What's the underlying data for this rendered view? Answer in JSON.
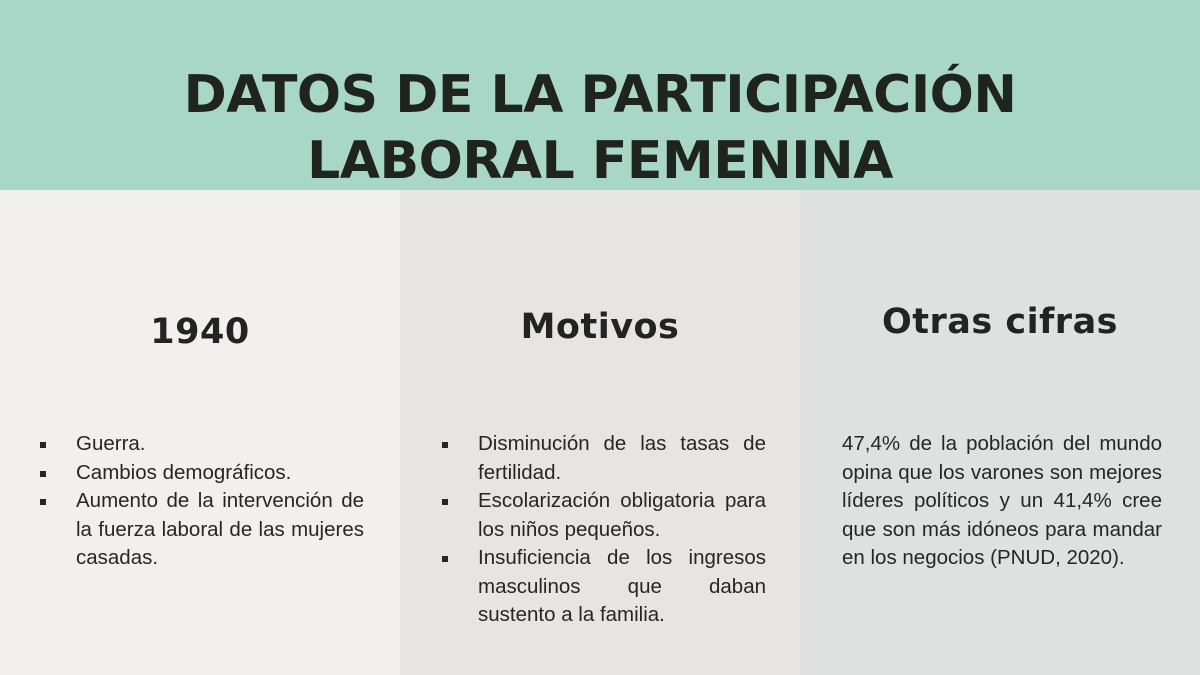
{
  "title_line1": "DATOS DE LA PARTICIPACIÓN",
  "title_line2": "LABORAL FEMENINA",
  "columns": [
    {
      "heading": "1940",
      "items": [
        "Guerra.",
        "Cambios demográficos.",
        "Aumento de la intervención de la fuerza laboral de las mujeres casadas."
      ]
    },
    {
      "heading": "Motivos",
      "items": [
        "Disminución de las tasas de fertilidad.",
        "Escolarización obligatoria para los niños pequeños.",
        "Insuficiencia de los ingresos masculinos que daban sustento a la familia."
      ]
    },
    {
      "heading": "Otras cifras",
      "text": "47,4% de la población del mundo opina que los varones son mejores líderes políticos y un 41,4% cree que son más idóneos para mandar en los negocios (PNUD, 2020)."
    }
  ],
  "colors": {
    "header": "#a8d7c8",
    "col1": "#f1f0ec",
    "col2": "#e6e5e1",
    "col3": "#dee1df"
  }
}
